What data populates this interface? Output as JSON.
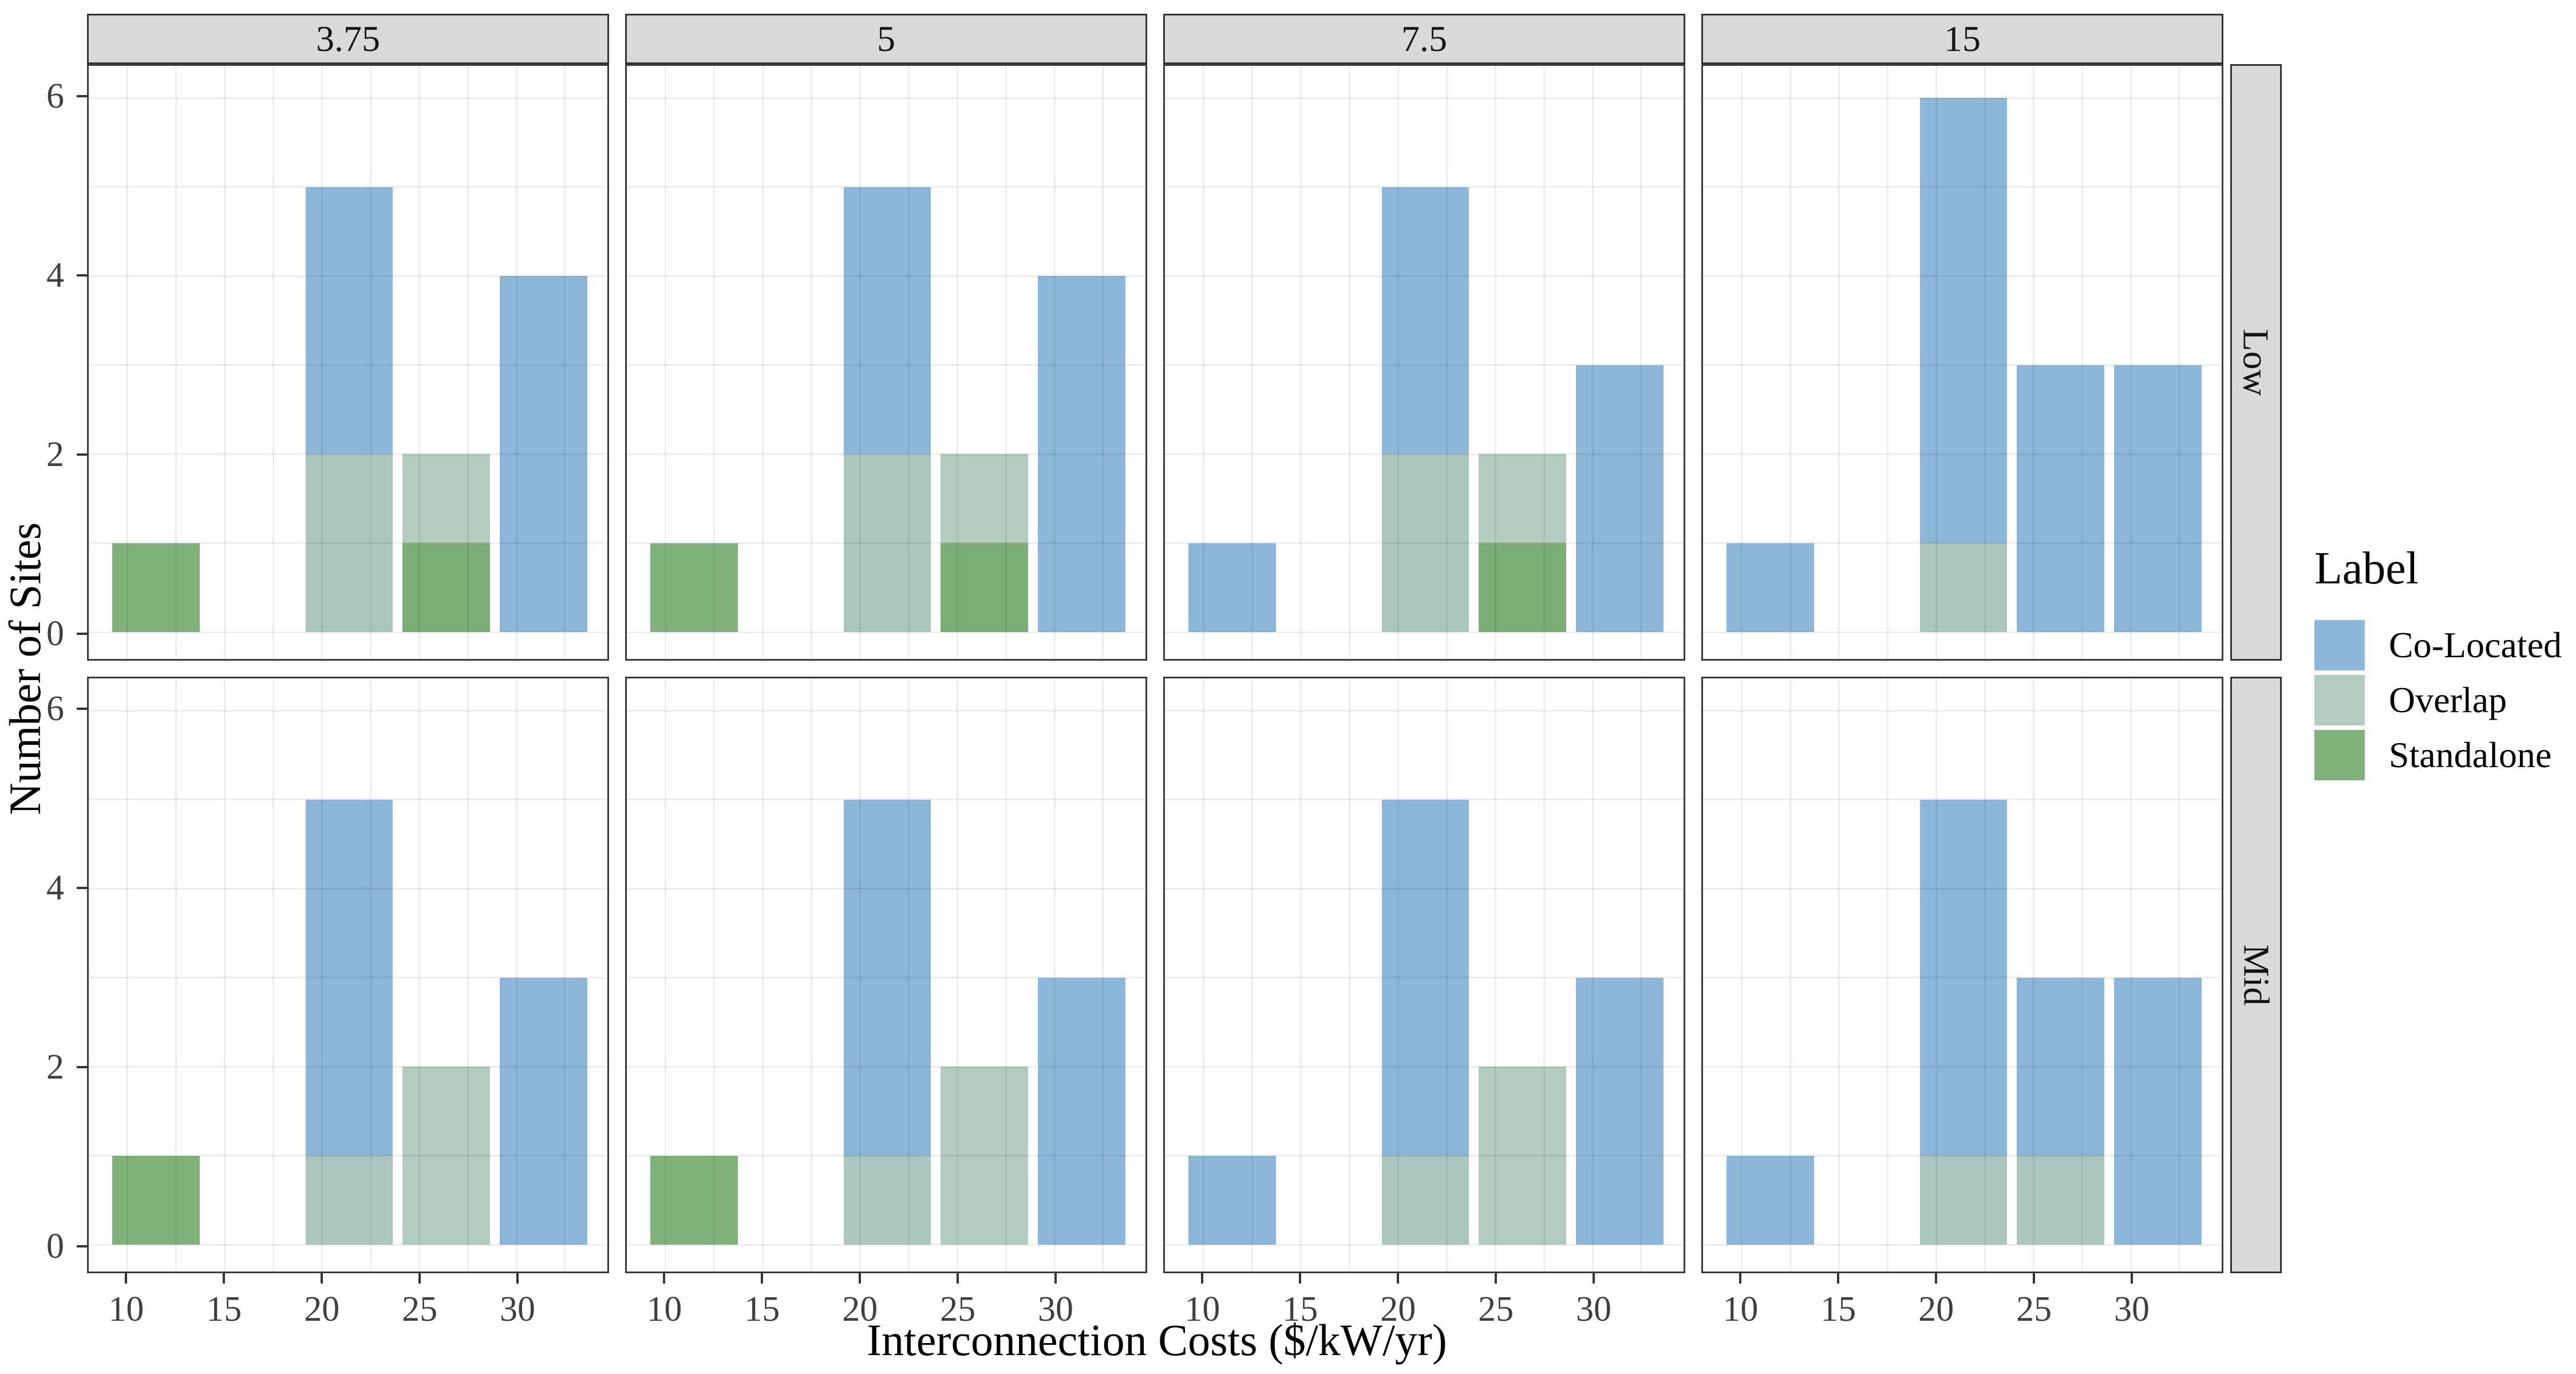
{
  "figure": {
    "background": "#ffffff"
  },
  "legend": {
    "title": "Label",
    "items": [
      {
        "label": "Co-Located",
        "color": "rgba(130,176,215,0.92)"
      },
      {
        "label": "Overlap",
        "color": "rgba(173,200,187,0.92)"
      },
      {
        "label": "Standalone",
        "color": "rgba(118,170,112,0.92)"
      }
    ]
  },
  "chart_data": {
    "type": "bar",
    "variant": "faceted-overlaid-histogram",
    "title": "",
    "xlabel": "Interconnection Costs ($/kW/yr)",
    "ylabel": "Number of Sites",
    "facet_col_labels": [
      "3.75",
      "5",
      "7.5",
      "15"
    ],
    "facet_row_labels": [
      "Low",
      "Mid"
    ],
    "x": {
      "ticks": [
        10,
        15,
        20,
        25,
        30
      ],
      "minor_gridlines": [
        12.5,
        17.5,
        22.5,
        27.5,
        32.5
      ],
      "domain": [
        8.0,
        34.68
      ]
    },
    "y": {
      "ticks": [
        0,
        2,
        4,
        6
      ],
      "minor_gridlines": [
        1,
        3,
        5
      ],
      "domain": [
        -0.3,
        6.36
      ]
    },
    "grid": "on",
    "legend_position": "right",
    "bin_edges": [
      [
        9.2,
        13.7
      ],
      [
        19.15,
        23.65
      ],
      [
        24.15,
        28.65
      ],
      [
        29.15,
        33.65
      ]
    ],
    "series_draw_order": [
      "Co-Located",
      "Overlap",
      "Standalone"
    ],
    "colors": {
      "Co-Located": "rgba(130,176,215,0.92)",
      "Overlap": "rgba(173,200,187,0.92)",
      "Standalone": "rgba(118,170,112,0.92)"
    },
    "panels": [
      {
        "facet_col": "3.75",
        "facet_row": "Low",
        "bars": [
          {
            "bin": 0,
            "series": "Standalone",
            "count": 1
          },
          {
            "bin": 1,
            "series": "Co-Located",
            "count": 5
          },
          {
            "bin": 1,
            "series": "Overlap",
            "count": 2
          },
          {
            "bin": 2,
            "series": "Overlap",
            "count": 2
          },
          {
            "bin": 2,
            "series": "Standalone",
            "count": 1
          },
          {
            "bin": 3,
            "series": "Co-Located",
            "count": 4
          }
        ]
      },
      {
        "facet_col": "5",
        "facet_row": "Low",
        "bars": [
          {
            "bin": 0,
            "series": "Standalone",
            "count": 1
          },
          {
            "bin": 1,
            "series": "Co-Located",
            "count": 5
          },
          {
            "bin": 1,
            "series": "Overlap",
            "count": 2
          },
          {
            "bin": 2,
            "series": "Overlap",
            "count": 2
          },
          {
            "bin": 2,
            "series": "Standalone",
            "count": 1
          },
          {
            "bin": 3,
            "series": "Co-Located",
            "count": 4
          }
        ]
      },
      {
        "facet_col": "7.5",
        "facet_row": "Low",
        "bars": [
          {
            "bin": 0,
            "series": "Co-Located",
            "count": 1
          },
          {
            "bin": 1,
            "series": "Co-Located",
            "count": 5
          },
          {
            "bin": 1,
            "series": "Overlap",
            "count": 2
          },
          {
            "bin": 2,
            "series": "Overlap",
            "count": 2
          },
          {
            "bin": 2,
            "series": "Standalone",
            "count": 1
          },
          {
            "bin": 3,
            "series": "Co-Located",
            "count": 3
          }
        ]
      },
      {
        "facet_col": "15",
        "facet_row": "Low",
        "bars": [
          {
            "bin": 0,
            "series": "Co-Located",
            "count": 1
          },
          {
            "bin": 1,
            "series": "Co-Located",
            "count": 6
          },
          {
            "bin": 1,
            "series": "Overlap",
            "count": 1
          },
          {
            "bin": 2,
            "series": "Co-Located",
            "count": 3
          },
          {
            "bin": 3,
            "series": "Co-Located",
            "count": 3
          }
        ]
      },
      {
        "facet_col": "3.75",
        "facet_row": "Mid",
        "bars": [
          {
            "bin": 0,
            "series": "Standalone",
            "count": 1
          },
          {
            "bin": 1,
            "series": "Co-Located",
            "count": 5
          },
          {
            "bin": 1,
            "series": "Overlap",
            "count": 1
          },
          {
            "bin": 2,
            "series": "Overlap",
            "count": 2
          },
          {
            "bin": 3,
            "series": "Co-Located",
            "count": 3
          }
        ]
      },
      {
        "facet_col": "5",
        "facet_row": "Mid",
        "bars": [
          {
            "bin": 0,
            "series": "Standalone",
            "count": 1
          },
          {
            "bin": 1,
            "series": "Co-Located",
            "count": 5
          },
          {
            "bin": 1,
            "series": "Overlap",
            "count": 1
          },
          {
            "bin": 2,
            "series": "Overlap",
            "count": 2
          },
          {
            "bin": 3,
            "series": "Co-Located",
            "count": 3
          }
        ]
      },
      {
        "facet_col": "7.5",
        "facet_row": "Mid",
        "bars": [
          {
            "bin": 0,
            "series": "Co-Located",
            "count": 1
          },
          {
            "bin": 1,
            "series": "Co-Located",
            "count": 5
          },
          {
            "bin": 1,
            "series": "Overlap",
            "count": 1
          },
          {
            "bin": 2,
            "series": "Overlap",
            "count": 2
          },
          {
            "bin": 3,
            "series": "Co-Located",
            "count": 3
          }
        ]
      },
      {
        "facet_col": "15",
        "facet_row": "Mid",
        "bars": [
          {
            "bin": 0,
            "series": "Co-Located",
            "count": 1
          },
          {
            "bin": 1,
            "series": "Co-Located",
            "count": 5
          },
          {
            "bin": 1,
            "series": "Overlap",
            "count": 1
          },
          {
            "bin": 2,
            "series": "Co-Located",
            "count": 3
          },
          {
            "bin": 2,
            "series": "Overlap",
            "count": 1
          },
          {
            "bin": 3,
            "series": "Co-Located",
            "count": 3
          }
        ]
      }
    ]
  }
}
